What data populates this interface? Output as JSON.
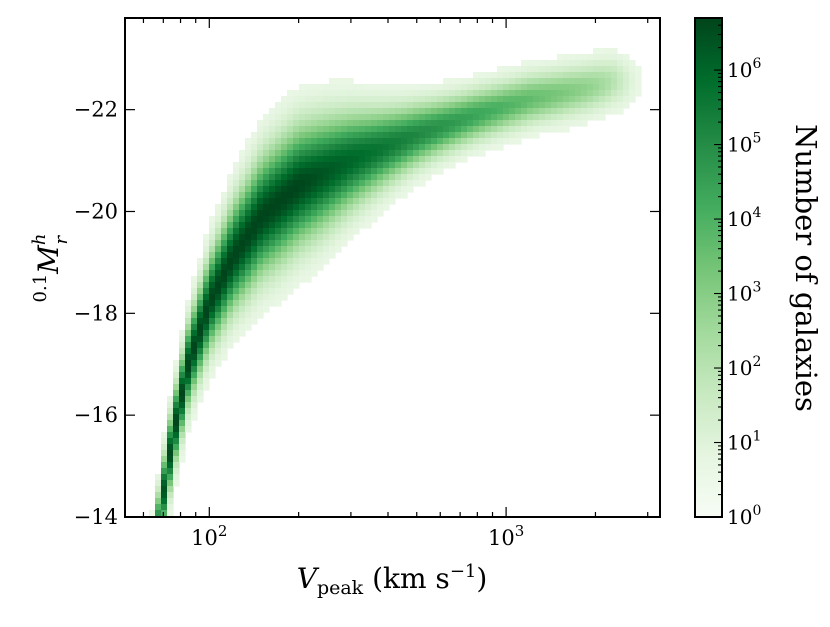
{
  "chart_data": {
    "type": "heatmap",
    "title": "",
    "xlabel": {
      "main": "V",
      "sub": "peak",
      "unit_pre": " (km s",
      "unit_sup": "−1",
      "unit_post": ")"
    },
    "ylabel": {
      "pre_sup": "0.1",
      "main": "M",
      "sup": "h",
      "sub": "r"
    },
    "x_scale": "log",
    "xlim": [
      52,
      3300
    ],
    "x_ticks": [
      {
        "value": 100,
        "base": "10",
        "exp": "2"
      },
      {
        "value": 1000,
        "base": "10",
        "exp": "3"
      }
    ],
    "y_inverted": true,
    "ylim": [
      -14,
      -23.8
    ],
    "y_ticks": [
      {
        "value": -14,
        "label": "−14"
      },
      {
        "value": -16,
        "label": "−16"
      },
      {
        "value": -18,
        "label": "−18"
      },
      {
        "value": -20,
        "label": "−20"
      },
      {
        "value": -22,
        "label": "−22"
      }
    ],
    "grid": false,
    "colormap": "Greens",
    "colormap_stops": [
      "#f7fcf5",
      "#e5f5e0",
      "#c7e9c0",
      "#a1d99b",
      "#74c476",
      "#41ab5d",
      "#238b45",
      "#006d2c",
      "#00441b"
    ],
    "colorbar": {
      "label": "Number of galaxies",
      "scale": "log",
      "range": [
        1,
        5000000
      ],
      "ticks": [
        {
          "value": 1,
          "base": "10",
          "exp": "0"
        },
        {
          "value": 10,
          "base": "10",
          "exp": "1"
        },
        {
          "value": 100,
          "base": "10",
          "exp": "2"
        },
        {
          "value": 1000,
          "base": "10",
          "exp": "3"
        },
        {
          "value": 10000,
          "base": "10",
          "exp": "4"
        },
        {
          "value": 100000,
          "base": "10",
          "exp": "5"
        },
        {
          "value": 1000000,
          "base": "10",
          "exp": "6"
        }
      ]
    },
    "ridge": {
      "x": [
        68,
        75,
        85,
        100,
        120,
        150,
        200,
        300,
        500,
        800,
        1200,
        1800,
        2300
      ],
      "y": [
        -14.0,
        -15.5,
        -17.0,
        -18.2,
        -19.1,
        -19.9,
        -20.5,
        -21.0,
        -21.5,
        -21.9,
        -22.2,
        -22.4,
        -22.55
      ]
    }
  }
}
